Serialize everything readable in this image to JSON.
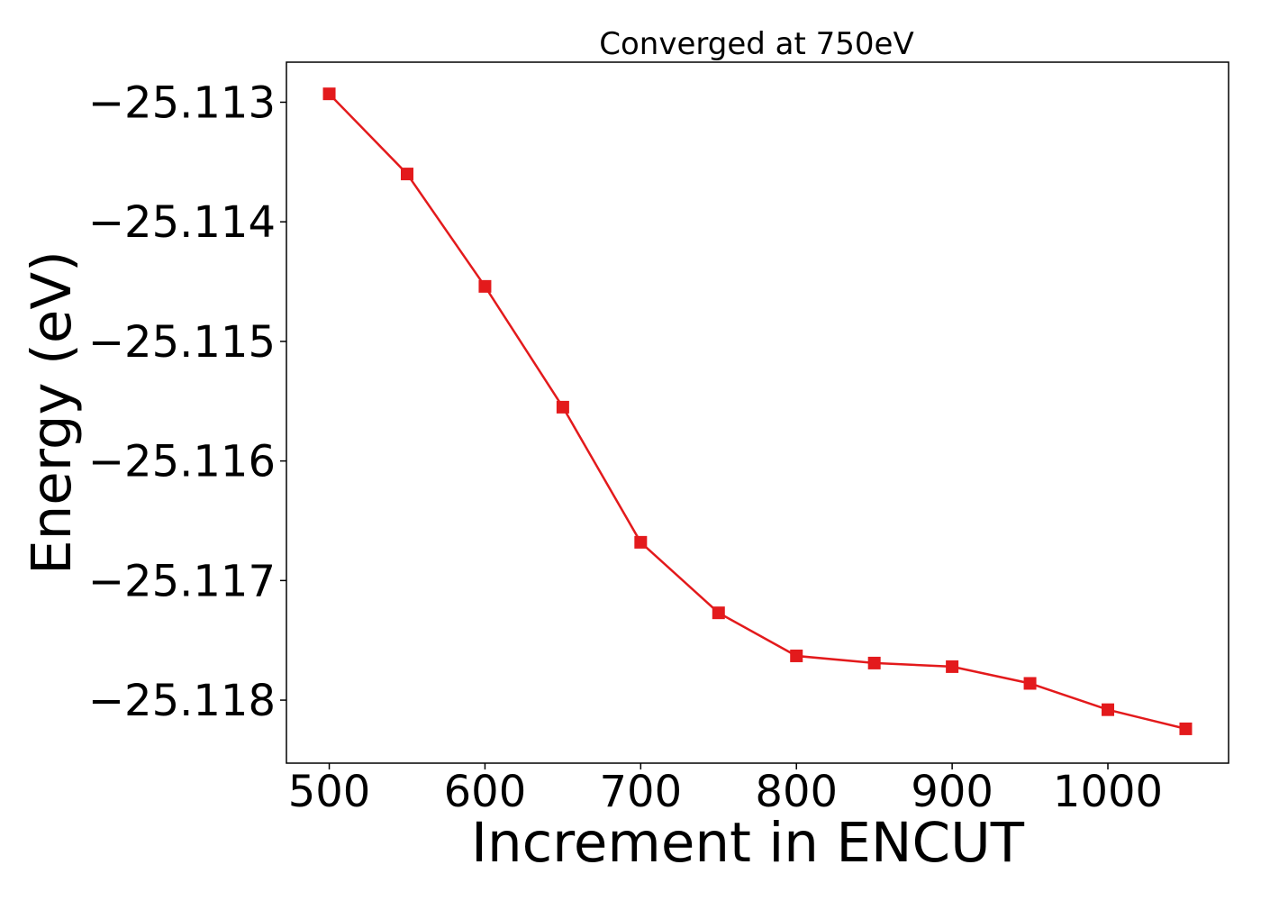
{
  "chart_data": {
    "type": "line",
    "title": "Converged at 750eV",
    "xlabel": "Increment in ENCUT",
    "ylabel": "Energy (eV)",
    "x": [
      500,
      550,
      600,
      650,
      700,
      750,
      800,
      850,
      900,
      950,
      1000,
      1050
    ],
    "series": [
      {
        "values": [
          -25.11293,
          -25.1136,
          -25.11454,
          -25.11555,
          -25.11668,
          -25.11727,
          -25.11763,
          -25.11769,
          -25.11772,
          -25.11786,
          -25.11808,
          -25.11824
        ],
        "color": "#e31a1c",
        "marker": "square"
      }
    ],
    "xlim": [
      472.5,
      1077.5
    ],
    "ylim": [
      -25.118527,
      -25.112665
    ],
    "x_ticks": [
      500,
      600,
      700,
      800,
      900,
      1000
    ],
    "x_tick_labels": [
      "500",
      "600",
      "700",
      "800",
      "900",
      "1000"
    ],
    "y_ticks": [
      -25.113,
      -25.114,
      -25.115,
      -25.116,
      -25.117,
      -25.118
    ],
    "y_tick_labels": [
      "−25.113",
      "−25.114",
      "−25.115",
      "−25.116",
      "−25.117",
      "−25.118"
    ],
    "grid": false,
    "legend": "none"
  }
}
